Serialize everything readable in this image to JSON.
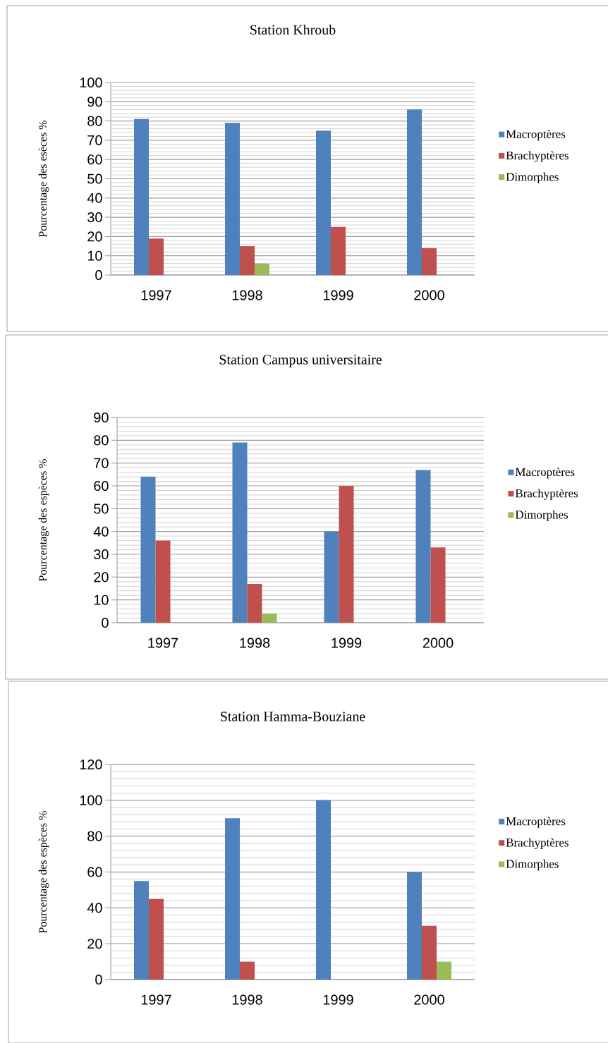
{
  "chart_data": [
    {
      "type": "bar",
      "title": "Station Khroub",
      "ylabel": "Pourcentage des esèces %",
      "categories": [
        "1997",
        "1998",
        "1999",
        "2000"
      ],
      "series": [
        {
          "name": "Macroptères",
          "color": "#4f81bd",
          "values": [
            81,
            79,
            75,
            86
          ]
        },
        {
          "name": "Brachyptères",
          "color": "#c0504d",
          "values": [
            19,
            15,
            25,
            14
          ]
        },
        {
          "name": "Dimorphes",
          "color": "#9bbb59",
          "values": [
            0,
            6,
            0,
            0
          ]
        }
      ],
      "ylim": [
        0,
        100
      ],
      "yticks": [
        0,
        10,
        20,
        30,
        40,
        50,
        60,
        70,
        80,
        90,
        100
      ],
      "grid": true,
      "legend": "right"
    },
    {
      "type": "bar",
      "title": "Station Campus universitaire",
      "ylabel": "Pourcentage des espèces %",
      "categories": [
        "1997",
        "1998",
        "1999",
        "2000"
      ],
      "series": [
        {
          "name": "Macroptères",
          "color": "#4f81bd",
          "values": [
            64,
            79,
            40,
            67
          ]
        },
        {
          "name": "Brachyptères",
          "color": "#c0504d",
          "values": [
            36,
            17,
            60,
            33
          ]
        },
        {
          "name": "Dimorphes",
          "color": "#9bbb59",
          "values": [
            0,
            4,
            0,
            0
          ]
        }
      ],
      "ylim": [
        0,
        90
      ],
      "yticks": [
        0,
        10,
        20,
        30,
        40,
        50,
        60,
        70,
        80,
        90
      ],
      "grid": true,
      "legend": "right"
    },
    {
      "type": "bar",
      "title": "Station Hamma-Bouziane",
      "ylabel": "Pourcentage des espèces %",
      "categories": [
        "1997",
        "1998",
        "1999",
        "2000"
      ],
      "series": [
        {
          "name": "Macroptères",
          "color": "#4f81bd",
          "values": [
            55,
            90,
            100,
            60
          ]
        },
        {
          "name": "Brachyptères",
          "color": "#c0504d",
          "values": [
            45,
            10,
            0,
            30
          ]
        },
        {
          "name": "Dimorphes",
          "color": "#9bbb59",
          "values": [
            0,
            0,
            0,
            10
          ]
        }
      ],
      "ylim": [
        0,
        120
      ],
      "yticks": [
        0,
        20,
        40,
        60,
        80,
        100,
        120
      ],
      "grid": true,
      "legend": "right"
    }
  ]
}
